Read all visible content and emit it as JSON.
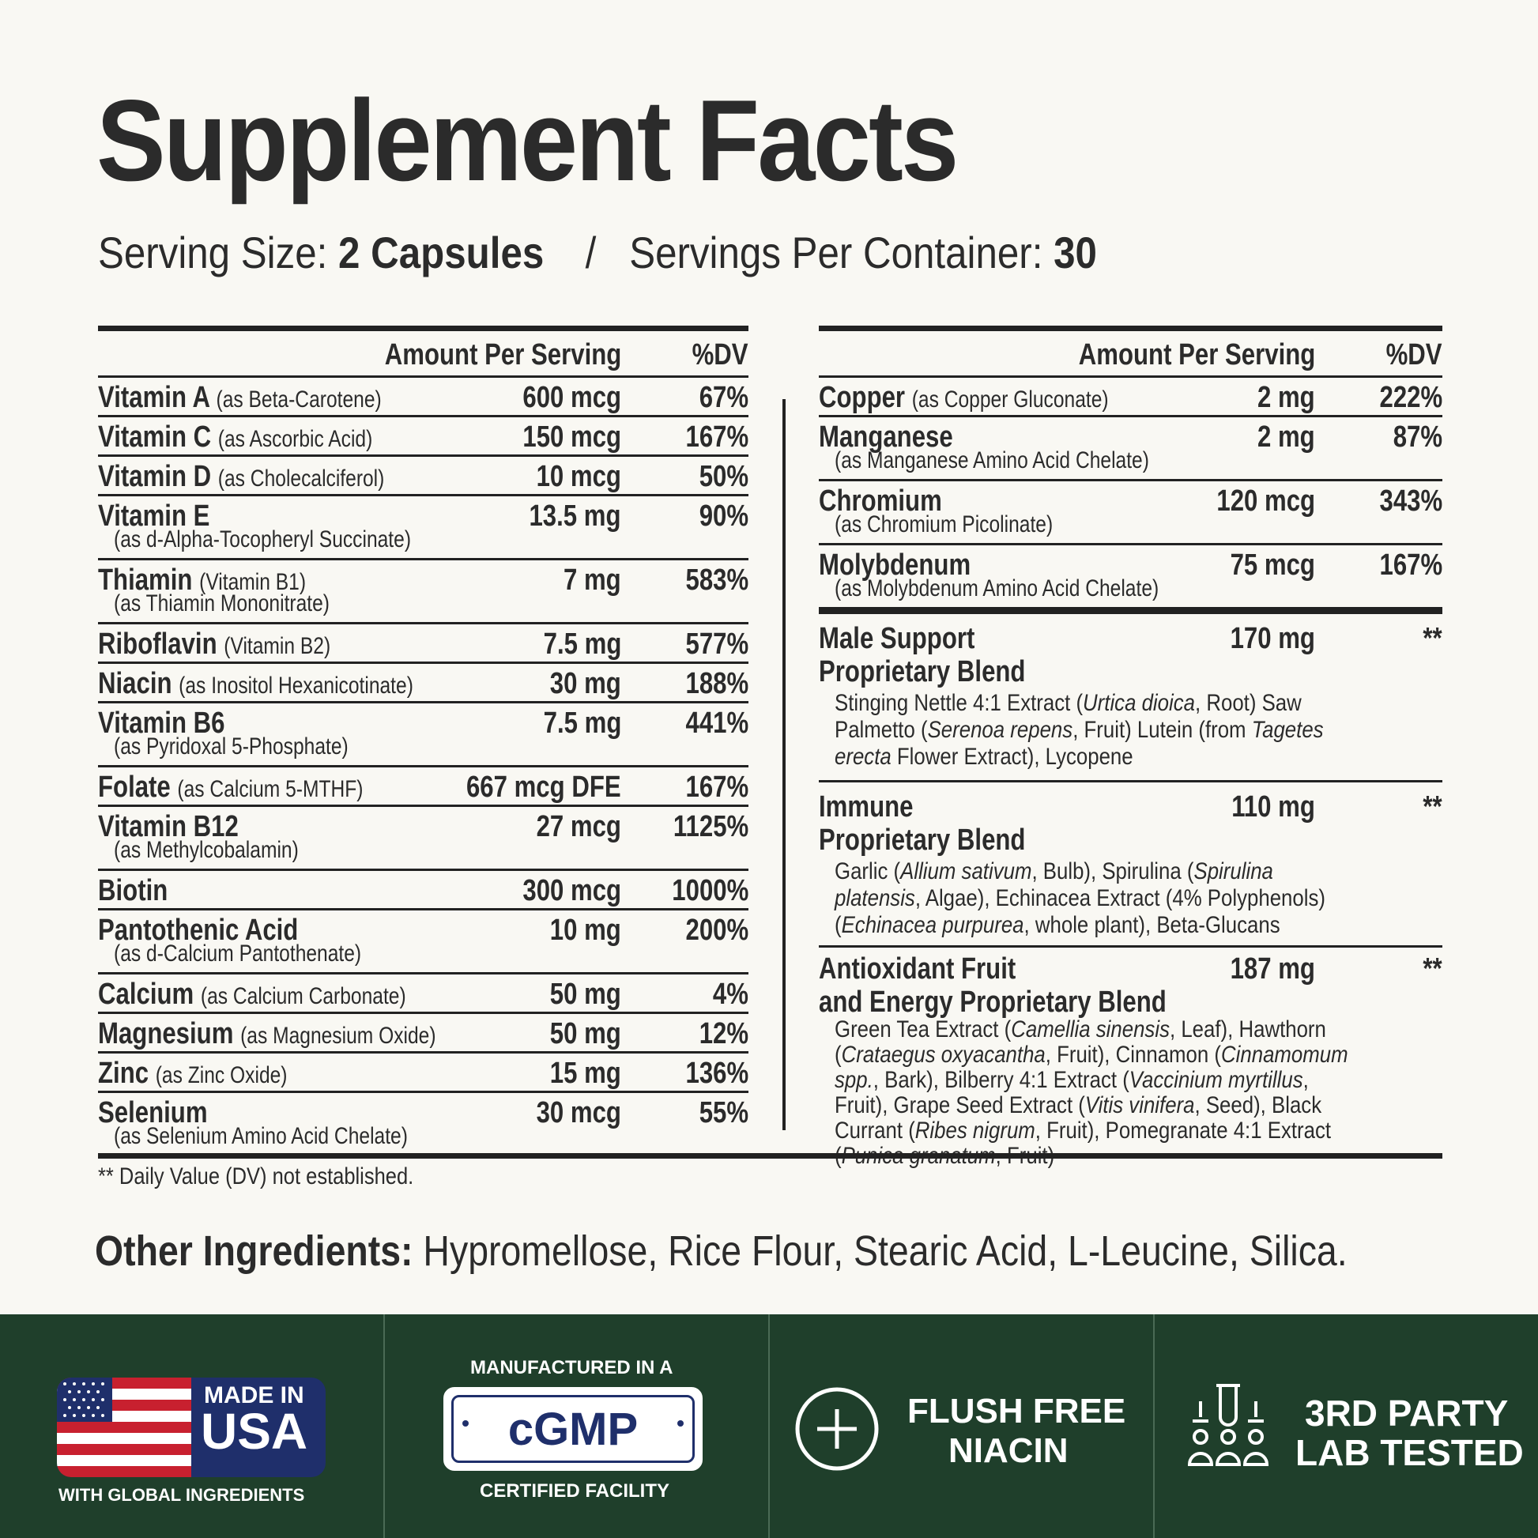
{
  "title": "Supplement Facts",
  "serving": {
    "size_label": "Serving Size:",
    "size_value": "2 Capsules",
    "separator": "/",
    "per_container_label": "Servings Per Container:",
    "per_container_value": "30"
  },
  "table_header": {
    "amount": "Amount Per Serving",
    "dv": "%DV"
  },
  "left_rows": [
    {
      "name": "Vitamin A",
      "inline": "(as Beta-Carotene)",
      "note": "",
      "amount": "600 mcg",
      "dv": "67%"
    },
    {
      "name": "Vitamin C",
      "inline": "(as Ascorbic Acid)",
      "note": "",
      "amount": "150 mcg",
      "dv": "167%"
    },
    {
      "name": "Vitamin D",
      "inline": "(as Cholecalciferol)",
      "note": "",
      "amount": "10 mcg",
      "dv": "50%"
    },
    {
      "name": "Vitamin E",
      "inline": "",
      "note": "(as d-Alpha-Tocopheryl Succinate)",
      "amount": "13.5 mg",
      "dv": "90%"
    },
    {
      "name": "Thiamin",
      "inline": "(Vitamin B1)",
      "note": "(as Thiamin Mononitrate)",
      "amount": "7 mg",
      "dv": "583%"
    },
    {
      "name": "Riboflavin",
      "inline": "(Vitamin B2)",
      "note": "",
      "amount": "7.5 mg",
      "dv": "577%"
    },
    {
      "name": "Niacin",
      "inline": "(as Inositol Hexanicotinate)",
      "note": "",
      "amount": "30 mg",
      "dv": "188%"
    },
    {
      "name": "Vitamin B6",
      "inline": "",
      "note": "(as Pyridoxal 5-Phosphate)",
      "amount": "7.5 mg",
      "dv": "441%"
    },
    {
      "name": "Folate",
      "inline": "(as Calcium 5-MTHF)",
      "note": "",
      "amount": "667 mcg DFE",
      "dv": "167%"
    },
    {
      "name": "Vitamin B12",
      "inline": "",
      "note": "(as Methylcobalamin)",
      "amount": "27 mcg",
      "dv": "1125%"
    },
    {
      "name": "Biotin",
      "inline": "",
      "note": "",
      "amount": "300 mcg",
      "dv": "1000%"
    },
    {
      "name": "Pantothenic Acid",
      "inline": "",
      "note": "(as d-Calcium Pantothenate)",
      "amount": "10 mg",
      "dv": "200%"
    },
    {
      "name": "Calcium",
      "inline": "(as Calcium Carbonate)",
      "note": "",
      "amount": "50 mg",
      "dv": "4%"
    },
    {
      "name": "Magnesium",
      "inline": "(as Magnesium Oxide)",
      "note": "",
      "amount": "50 mg",
      "dv": "12%"
    },
    {
      "name": "Zinc",
      "inline": "(as Zinc Oxide)",
      "note": "",
      "amount": "15 mg",
      "dv": "136%"
    },
    {
      "name": "Selenium",
      "inline": "",
      "note": "(as Selenium Amino Acid Chelate)",
      "amount": "30 mcg",
      "dv": "55%"
    }
  ],
  "right_rows": [
    {
      "name": "Copper",
      "inline": "(as Copper Gluconate)",
      "note": "",
      "amount": "2 mg",
      "dv": "222%"
    },
    {
      "name": "Manganese",
      "inline": "",
      "note": "(as Manganese Amino Acid Chelate)",
      "amount": "2 mg",
      "dv": "87%"
    },
    {
      "name": "Chromium",
      "inline": "",
      "note": "(as Chromium Picolinate)",
      "amount": "120 mcg",
      "dv": "343%"
    },
    {
      "name": "Molybdenum",
      "inline": "",
      "note": "(as Molybdenum Amino Acid Chelate)",
      "amount": "75 mcg",
      "dv": "167%"
    }
  ],
  "blends": [
    {
      "name_line1": "Male Support",
      "name_line2": "Proprietary Blend",
      "amount": "170 mg",
      "dv": "**"
    },
    {
      "name_line1": "Immune",
      "name_line2": "Proprietary Blend",
      "amount": "110 mg",
      "dv": "**"
    },
    {
      "name_line1": "Antioxidant Fruit",
      "name_line2": "and Energy Proprietary Blend",
      "amount": "187 mg",
      "dv": "**"
    }
  ],
  "footnote": "** Daily Value (DV) not established.",
  "other_ingredients": {
    "label": "Other Ingredients:",
    "value": "Hypromellose, Rice Flour, Stearic Acid, L-Leucine, Silica."
  },
  "badges": {
    "usa": {
      "line1": "MADE IN",
      "line2": "USA",
      "sub": "WITH GLOBAL INGREDIENTS"
    },
    "cgmp": {
      "top": "MANUFACTURED IN A",
      "mark": "cGMP",
      "bottom": "CERTIFIED FACILITY"
    },
    "flush": {
      "line1": "FLUSH FREE",
      "line2": "NIACIN"
    },
    "lab": {
      "line1": "3RD PARTY",
      "line2": "LAB TESTED"
    }
  },
  "colors": {
    "background": "#f9f8f3",
    "text": "#2b2b2b",
    "band": "#1f3f2b",
    "flag_red": "#c8202f",
    "flag_blue": "#1f2f6b"
  }
}
